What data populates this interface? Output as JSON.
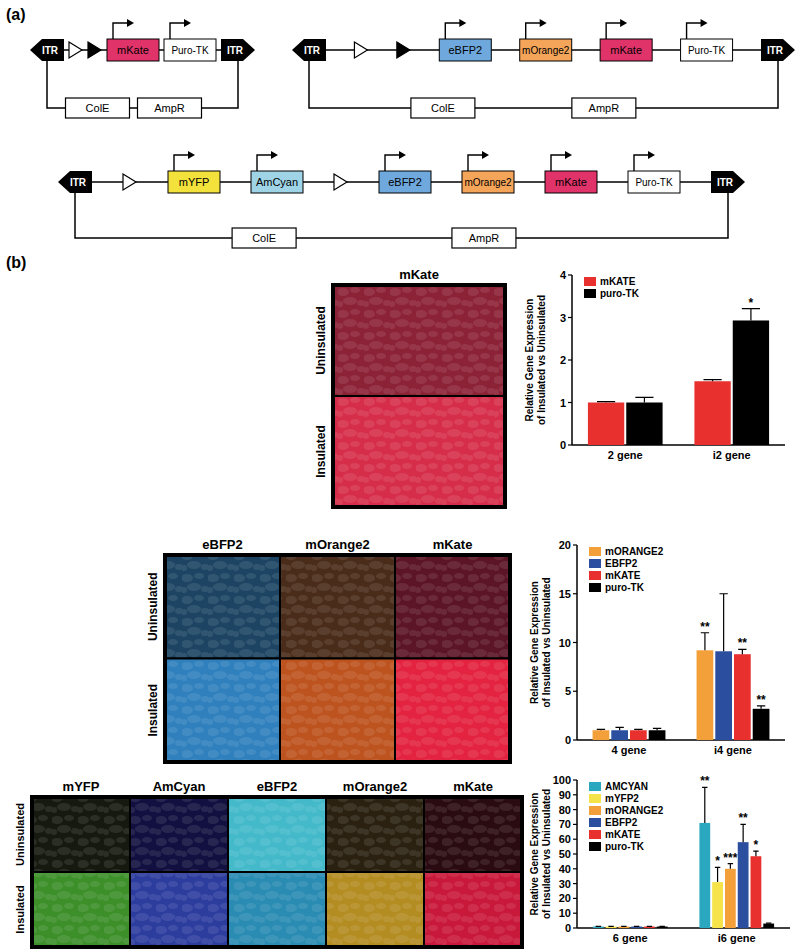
{
  "panel_labels": [
    "(a)",
    "(b)"
  ],
  "constructs": [
    {
      "elements": [
        {
          "kind": "itr",
          "label": "ITR",
          "direction": "left"
        },
        {
          "kind": "insulator",
          "fill": "open"
        },
        {
          "kind": "insulator",
          "fill": "filled"
        },
        {
          "kind": "gene",
          "label": "mKate",
          "color": "#e0336a"
        },
        {
          "kind": "gene",
          "label": "Puro-TK",
          "color": "#ffffff"
        },
        {
          "kind": "itr",
          "label": "ITR",
          "direction": "right"
        }
      ],
      "backbone": [
        "ColE",
        "AmpR"
      ]
    },
    {
      "elements": [
        {
          "kind": "itr",
          "label": "ITR",
          "direction": "left"
        },
        {
          "kind": "insulator",
          "fill": "open"
        },
        {
          "kind": "insulator",
          "fill": "filled"
        },
        {
          "kind": "gene",
          "label": "eBFP2",
          "color": "#6fa8dc"
        },
        {
          "kind": "gene",
          "label": "mOrange2",
          "color": "#f5a55a"
        },
        {
          "kind": "gene",
          "label": "mKate",
          "color": "#e0336a"
        },
        {
          "kind": "gene",
          "label": "Puro-TK",
          "color": "#ffffff"
        },
        {
          "kind": "itr",
          "label": "ITR",
          "direction": "right"
        }
      ],
      "backbone": [
        "ColE",
        "AmpR"
      ]
    },
    {
      "elements": [
        {
          "kind": "itr",
          "label": "ITR",
          "direction": "left"
        },
        {
          "kind": "insulator",
          "fill": "open"
        },
        {
          "kind": "gene",
          "label": "mYFP",
          "color": "#f3e23c"
        },
        {
          "kind": "gene",
          "label": "AmCyan",
          "color": "#9fd3e6"
        },
        {
          "kind": "insulator",
          "fill": "open"
        },
        {
          "kind": "gene",
          "label": "eBFP2",
          "color": "#6fa8dc"
        },
        {
          "kind": "gene",
          "label": "mOrange2",
          "color": "#f5a55a"
        },
        {
          "kind": "gene",
          "label": "mKate",
          "color": "#e0336a"
        },
        {
          "kind": "gene",
          "label": "Puro-TK",
          "color": "#ffffff"
        },
        {
          "kind": "itr",
          "label": "ITR",
          "direction": "right"
        }
      ],
      "backbone": [
        "ColE",
        "AmpR"
      ]
    }
  ],
  "micrographs": [
    {
      "rows": [
        "Uninsulated",
        "Insulated"
      ],
      "columns": [
        {
          "label": "mKate",
          "colors": [
            "#8c2236",
            "#d62e4a"
          ]
        }
      ]
    },
    {
      "rows": [
        "Uninsulated",
        "Insulated"
      ],
      "columns": [
        {
          "label": "eBFP2",
          "colors": [
            "#1d4563",
            "#2f80bd"
          ]
        },
        {
          "label": "mOrange2",
          "colors": [
            "#4a2c1a",
            "#bd5420"
          ]
        },
        {
          "label": "mKate",
          "colors": [
            "#5c1526",
            "#e3233f"
          ]
        }
      ]
    },
    {
      "rows": [
        "Uninsulated",
        "Insulated"
      ],
      "columns": [
        {
          "label": "mYFP",
          "colors": [
            "#15190f",
            "#3d8f2a"
          ]
        },
        {
          "label": "AmCyan",
          "colors": [
            "#121040",
            "#2d3d9e"
          ]
        },
        {
          "label": "eBFP2",
          "colors": [
            "#43b9c9",
            "#2a8cb2"
          ]
        },
        {
          "label": "mOrange2",
          "colors": [
            "#2a2110",
            "#b38c22"
          ]
        },
        {
          "label": "mKate",
          "colors": [
            "#2b0b12",
            "#c9193a"
          ]
        }
      ]
    }
  ],
  "chart_data": [
    {
      "type": "bar",
      "y_label": "Relative Gene Expression of Insulated vs Uninsulated",
      "categories": [
        "2 gene",
        "i2 gene"
      ],
      "series": [
        {
          "name": "mKATE",
          "color": "#e8312f",
          "values": [
            1,
            1.5
          ],
          "errors": [
            0.02,
            0.04
          ],
          "annotations": [
            null,
            null
          ]
        },
        {
          "name": "puro-TK",
          "color": "#000000",
          "values": [
            1,
            2.93
          ],
          "errors": [
            0.12,
            0.28
          ],
          "annotations": [
            null,
            "*"
          ]
        }
      ],
      "ylim": [
        0,
        4
      ],
      "yticks": [
        0,
        1,
        2,
        3,
        4
      ],
      "grid": false,
      "legend": "upper left"
    },
    {
      "type": "bar",
      "y_label": "Relative Gene Expression of Insulated vs Uninsulated",
      "categories": [
        "4 gene",
        "i4 gene"
      ],
      "series": [
        {
          "name": "mORANGE2",
          "color": "#f4a03a",
          "values": [
            1,
            9.2
          ],
          "errors": [
            0.1,
            1.8
          ],
          "annotations": [
            null,
            "**"
          ]
        },
        {
          "name": "EBFP2",
          "color": "#2b4f9e",
          "values": [
            1,
            9.1
          ],
          "errors": [
            0.3,
            5.9
          ],
          "annotations": [
            null,
            null
          ]
        },
        {
          "name": "mKATE",
          "color": "#e8312f",
          "values": [
            1,
            8.8
          ],
          "errors": [
            0.1,
            0.5
          ],
          "annotations": [
            null,
            "**"
          ]
        },
        {
          "name": "puro-TK",
          "color": "#000000",
          "values": [
            1,
            3.2
          ],
          "errors": [
            0.2,
            0.3
          ],
          "annotations": [
            null,
            "**"
          ]
        }
      ],
      "ylim": [
        0,
        20
      ],
      "yticks": [
        0,
        5,
        10,
        15,
        20
      ],
      "grid": false,
      "legend": "upper left"
    },
    {
      "type": "bar",
      "y_label": "Relative Gene Expression of Insulated vs Uninsulated",
      "categories": [
        "6 gene",
        "i6 gene"
      ],
      "series": [
        {
          "name": "AMCYAN",
          "color": "#2aa8c0",
          "values": [
            1,
            71
          ],
          "errors": [
            0.1,
            24
          ],
          "annotations": [
            null,
            "**"
          ]
        },
        {
          "name": "mYFP2",
          "color": "#f6e34a",
          "values": [
            1,
            31
          ],
          "errors": [
            0.1,
            10
          ],
          "annotations": [
            null,
            "*"
          ]
        },
        {
          "name": "mORANGE2",
          "color": "#f4a03a",
          "values": [
            1,
            40
          ],
          "errors": [
            0.1,
            3.5
          ],
          "annotations": [
            null,
            "***"
          ]
        },
        {
          "name": "EBFP2",
          "color": "#2b4f9e",
          "values": [
            1,
            58
          ],
          "errors": [
            0.1,
            12
          ],
          "annotations": [
            null,
            "**"
          ]
        },
        {
          "name": "mKATE",
          "color": "#e8312f",
          "values": [
            1,
            48.5
          ],
          "errors": [
            0.1,
            3.5
          ],
          "annotations": [
            null,
            "*"
          ]
        },
        {
          "name": "puro-TK",
          "color": "#000000",
          "values": [
            1,
            3
          ],
          "errors": [
            0.1,
            0.3
          ],
          "annotations": [
            null,
            null
          ]
        }
      ],
      "ylim": [
        0,
        100
      ],
      "yticks": [
        0,
        10,
        20,
        30,
        40,
        50,
        60,
        70,
        80,
        90,
        100
      ],
      "grid": false,
      "legend": "upper left"
    }
  ]
}
